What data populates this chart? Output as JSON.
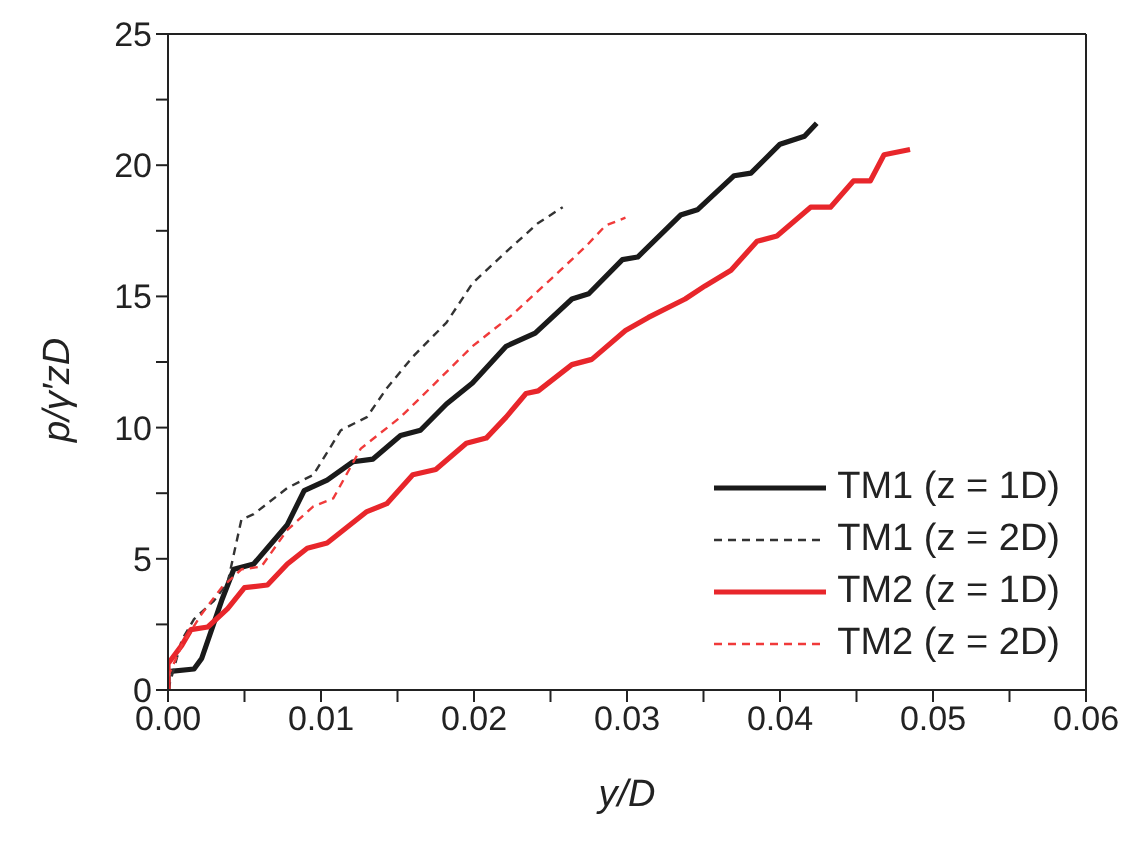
{
  "chart_data": {
    "type": "line",
    "xlabel": "y/D",
    "ylabel": "p/γ′zD",
    "xlim": [
      0,
      0.06
    ],
    "xticks": [
      {
        "value": 0,
        "label": "0.00"
      },
      {
        "value": 0.005,
        "label": null
      },
      {
        "value": 0.01,
        "label": "0.01"
      },
      {
        "value": 0.015,
        "label": null
      },
      {
        "value": 0.02,
        "label": "0.02"
      },
      {
        "value": 0.025,
        "label": null
      },
      {
        "value": 0.03,
        "label": "0.03"
      },
      {
        "value": 0.035,
        "label": null
      },
      {
        "value": 0.04,
        "label": "0.04"
      },
      {
        "value": 0.045,
        "label": null
      },
      {
        "value": 0.05,
        "label": "0.05"
      },
      {
        "value": 0.055,
        "label": null
      },
      {
        "value": 0.06,
        "label": "0.06"
      }
    ],
    "ylim": [
      0,
      25
    ],
    "yticks": [
      0,
      {
        "value": 2.5,
        "label": null
      },
      5,
      {
        "value": 7.5,
        "label": null
      },
      10,
      {
        "value": 12.5,
        "label": null
      },
      15,
      {
        "value": 17.5,
        "label": null
      },
      20,
      {
        "value": 22.5,
        "label": null
      },
      25
    ],
    "grid": false,
    "legend": "bottom right",
    "marker": "none",
    "series": [
      {
        "name": "TM1 (z = 1D)",
        "color": "#1a1a1a",
        "line_style": "solid",
        "x": [
          0,
          0,
          0.0017,
          0.0022,
          0.0035,
          0.0043,
          0.0056,
          0.0078,
          0.0089,
          0.0104,
          0.0121,
          0.0134,
          0.0152,
          0.0165,
          0.0182,
          0.0199,
          0.0221,
          0.024,
          0.0264,
          0.0275,
          0.0297,
          0.0307,
          0.0335,
          0.0346,
          0.037,
          0.0381,
          0.04,
          0.0416,
          0.0424
        ],
        "values": [
          0,
          0.7,
          0.8,
          1.2,
          3.4,
          4.6,
          4.8,
          6.3,
          7.6,
          8.0,
          8.7,
          8.8,
          9.7,
          9.9,
          10.9,
          11.7,
          13.1,
          13.6,
          14.9,
          15.1,
          16.4,
          16.5,
          18.1,
          18.3,
          19.6,
          19.7,
          20.8,
          21.1,
          21.6
        ]
      },
      {
        "name": "TM1 (z = 2D)",
        "color": "#333333",
        "line_style": "dashed",
        "x": [
          0,
          0.0009,
          0.0017,
          0.003,
          0.0039,
          0.0048,
          0.0056,
          0.0078,
          0.0095,
          0.0113,
          0.013,
          0.0143,
          0.016,
          0.0182,
          0.0199,
          0.0221,
          0.0242,
          0.0258
        ],
        "values": [
          0,
          1.9,
          2.7,
          3.4,
          4.1,
          6.5,
          6.7,
          7.7,
          8.2,
          9.9,
          10.4,
          11.5,
          12.7,
          14.0,
          15.5,
          16.7,
          17.8,
          18.4
        ]
      },
      {
        "name": "TM2 (z = 1D)",
        "color": "#e8262b",
        "line_style": "solid",
        "x": [
          0,
          0,
          0.0009,
          0.0015,
          0.0026,
          0.0039,
          0.005,
          0.0065,
          0.0078,
          0.0091,
          0.0104,
          0.013,
          0.0143,
          0.016,
          0.0175,
          0.0195,
          0.0208,
          0.0221,
          0.0234,
          0.0242,
          0.0264,
          0.0277,
          0.0299,
          0.0314,
          0.0338,
          0.0351,
          0.0368,
          0.0385,
          0.0398,
          0.042,
          0.0433,
          0.0448,
          0.0459,
          0.0468,
          0.0485
        ],
        "values": [
          0,
          1.0,
          1.7,
          2.3,
          2.4,
          3.1,
          3.9,
          4.0,
          4.8,
          5.4,
          5.6,
          6.8,
          7.1,
          8.2,
          8.4,
          9.4,
          9.6,
          10.4,
          11.3,
          11.4,
          12.4,
          12.6,
          13.7,
          14.2,
          14.9,
          15.4,
          16.0,
          17.1,
          17.3,
          18.4,
          18.4,
          19.4,
          19.4,
          20.4,
          20.6
        ]
      },
      {
        "name": "TM2 (z = 2D)",
        "color": "#f03a3a",
        "line_style": "dashed",
        "x": [
          0,
          0.0009,
          0.0022,
          0.0035,
          0.0048,
          0.0061,
          0.0078,
          0.0095,
          0.0108,
          0.0126,
          0.0152,
          0.0173,
          0.0199,
          0.0225,
          0.0251,
          0.0273,
          0.0286,
          0.0299
        ],
        "values": [
          0.5,
          1.7,
          2.9,
          3.9,
          4.6,
          4.7,
          6.1,
          7.0,
          7.3,
          9.2,
          10.4,
          11.6,
          13.1,
          14.3,
          15.7,
          16.9,
          17.7,
          18.0
        ]
      }
    ]
  }
}
